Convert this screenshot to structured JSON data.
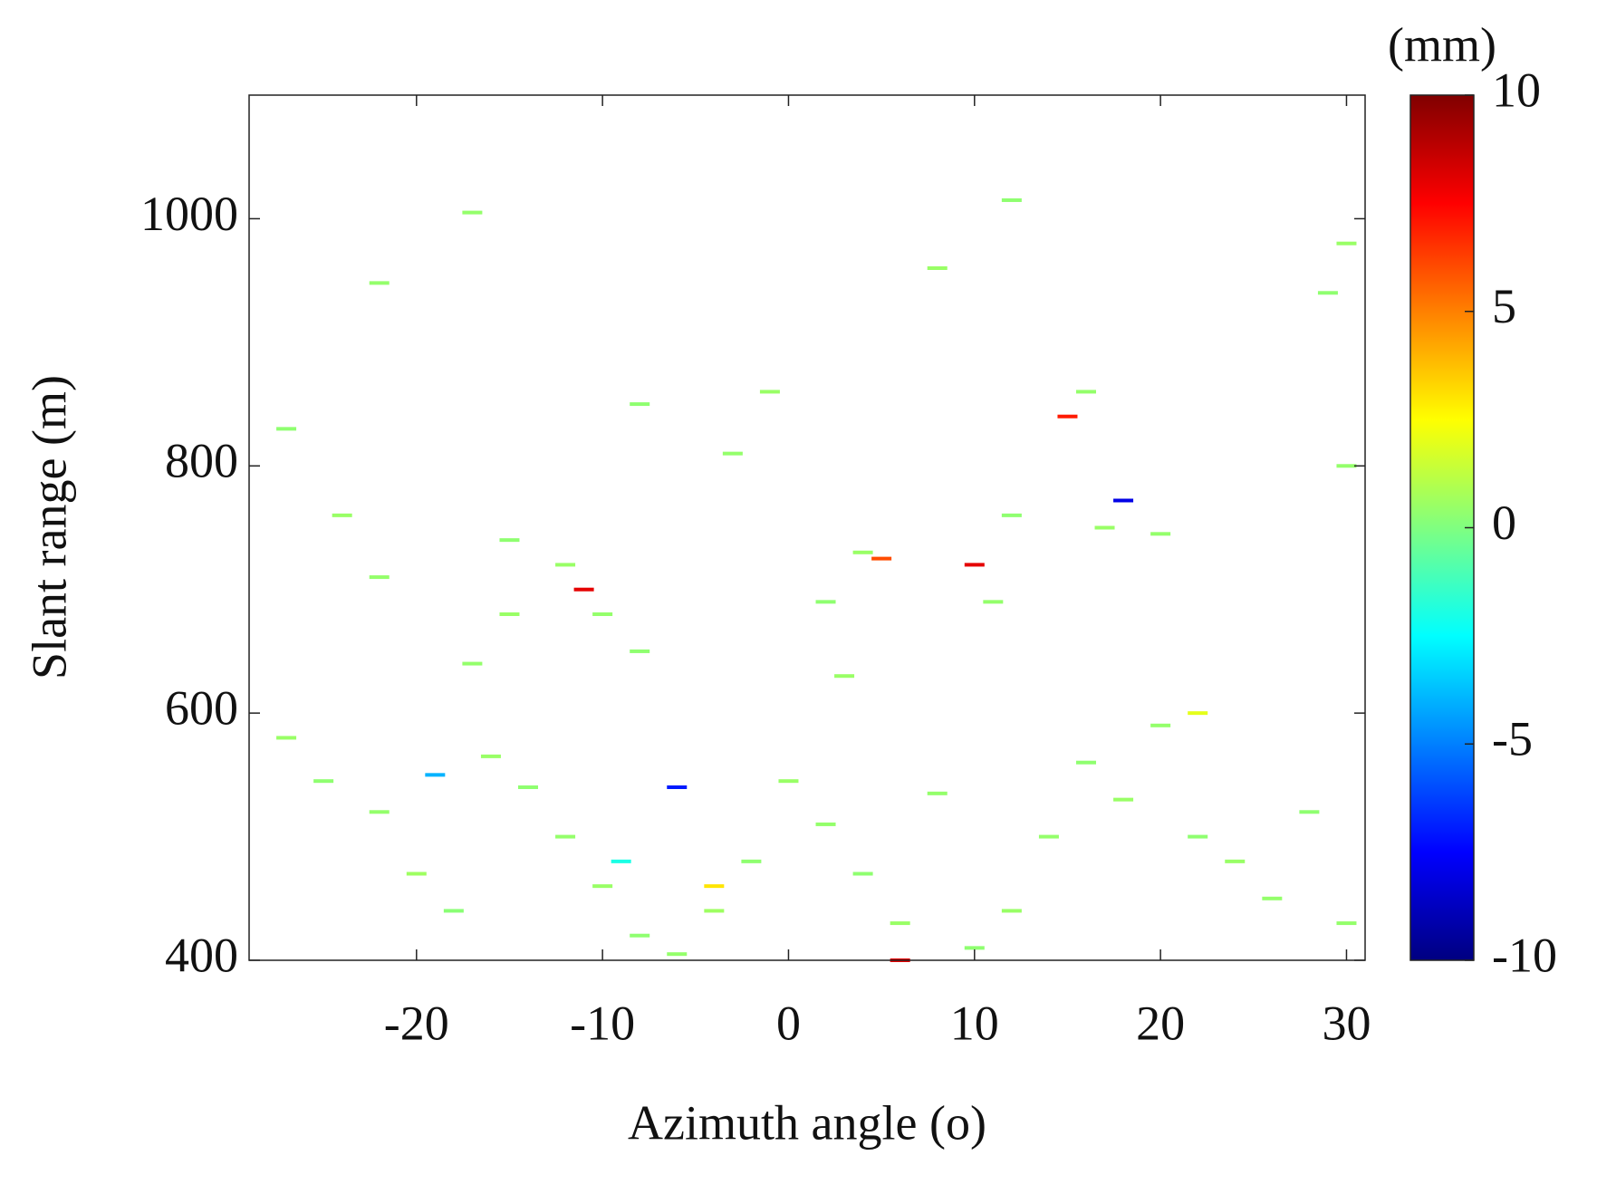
{
  "chart_data": {
    "type": "scatter",
    "xlabel": "Azimuth angle (o)",
    "ylabel": "Slant range (m)",
    "xlim": [
      -29,
      31
    ],
    "xticks": [
      -20,
      -10,
      0,
      10,
      20,
      30
    ],
    "ylim": [
      400,
      1100
    ],
    "yticks": [
      400,
      600,
      800,
      1000
    ],
    "colormap": "jet",
    "colorbar": {
      "label": "(mm)",
      "lim": [
        -10,
        10
      ],
      "ticks": [
        -10,
        -5,
        0,
        5,
        10
      ]
    },
    "x": [
      -27,
      -25,
      -22,
      -20,
      -18,
      -16,
      -14,
      -12,
      -10,
      -8,
      -6,
      -4,
      -2,
      0,
      2,
      4,
      6,
      8,
      10,
      12,
      14,
      16,
      18,
      20,
      22,
      24,
      26,
      28,
      30,
      -24,
      -22,
      -15,
      -12,
      -10,
      -8,
      -15,
      -17,
      2,
      4,
      11,
      12,
      17,
      20,
      3,
      18,
      -3,
      -8,
      -1,
      16,
      29,
      30,
      -17,
      12,
      -22,
      8,
      30,
      -27,
      -6,
      5,
      -11,
      -4,
      10,
      -19,
      15,
      -9,
      22,
      6
    ],
    "y": [
      580,
      545,
      520,
      470,
      440,
      565,
      540,
      500,
      460,
      420,
      405,
      440,
      480,
      545,
      510,
      470,
      430,
      535,
      410,
      440,
      500,
      560,
      530,
      590,
      500,
      480,
      450,
      520,
      430,
      760,
      710,
      740,
      720,
      680,
      650,
      680,
      640,
      690,
      730,
      690,
      760,
      750,
      745,
      630,
      772,
      810,
      850,
      860,
      860,
      940,
      980,
      1005,
      1015,
      948,
      960,
      800,
      830,
      540,
      725,
      700,
      460,
      720,
      550,
      840,
      480,
      600,
      400
    ],
    "values": [
      0.5,
      0.3,
      0.4,
      0.6,
      0.2,
      0.5,
      0.3,
      0.4,
      0.5,
      0.3,
      0.4,
      0.6,
      0.3,
      0.5,
      0.4,
      0.3,
      0.5,
      0.4,
      0.3,
      0.5,
      0.4,
      0.3,
      0.5,
      0.4,
      0.3,
      0.5,
      0.4,
      0.3,
      0.4,
      0.5,
      0.4,
      0.3,
      0.5,
      0.4,
      0.3,
      0.5,
      0.4,
      0.3,
      0.5,
      0.4,
      0.3,
      0.5,
      0.4,
      0.5,
      -8,
      0.4,
      0.3,
      0.5,
      0.4,
      0.3,
      0.5,
      0.4,
      0.3,
      0.4,
      0.5,
      0.4,
      0.3,
      -7,
      6,
      8,
      3,
      8,
      -4,
      7,
      -2,
      2,
      8
    ]
  }
}
